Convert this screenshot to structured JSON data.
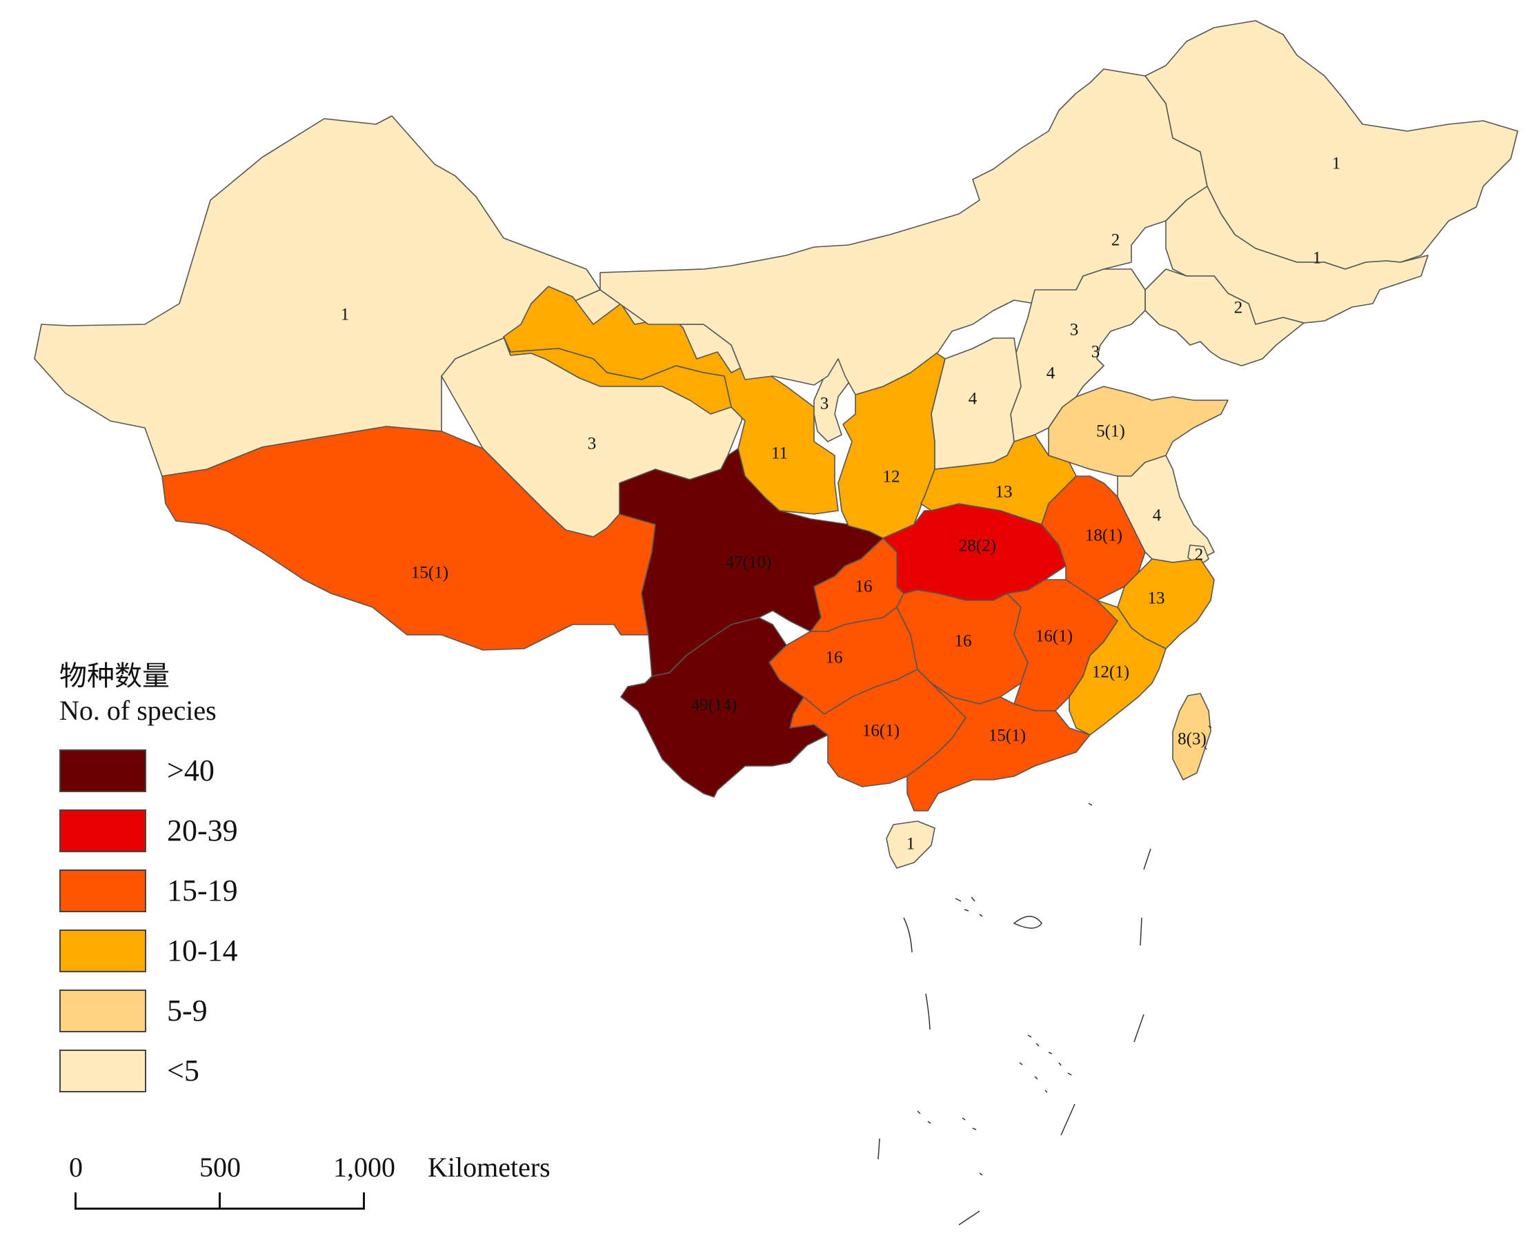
{
  "colors": {
    "class_gt40": "#6b0000",
    "class_20_39": "#e60000",
    "class_15_19": "#ff5500",
    "class_10_14": "#ffaa00",
    "class_5_9": "#ffd37f",
    "class_lt5": "#ffebbe"
  },
  "legend": {
    "title_cn": "物种数量",
    "title_en": "No. of species",
    "items": [
      {
        "label": ">40",
        "color": "#6b0000"
      },
      {
        "label": "20-39",
        "color": "#e60000"
      },
      {
        "label": "15-19",
        "color": "#ff5500"
      },
      {
        "label": "10-14",
        "color": "#ffaa00"
      },
      {
        "label": "5-9",
        "color": "#ffd37f"
      },
      {
        "label": "<5",
        "color": "#ffebbe"
      }
    ]
  },
  "scale_bar": {
    "ticks": [
      "0",
      "500",
      "1,000"
    ],
    "unit": "Kilometers"
  },
  "regions": [
    {
      "label": "1",
      "class": "class_lt5"
    },
    {
      "label": "3",
      "class": "class_lt5"
    },
    {
      "label": "15(1)",
      "class": "class_15_19"
    },
    {
      "label": "47(10)",
      "class": "class_gt40"
    },
    {
      "label": "49(14)",
      "class": "class_gt40"
    },
    {
      "label": "11",
      "class": "class_10_14"
    },
    {
      "label": "",
      "class": "class_10_14"
    },
    {
      "label": "3",
      "class": "class_lt5"
    },
    {
      "label": "12",
      "class": "class_10_14"
    },
    {
      "label": "2",
      "class": "class_lt5"
    },
    {
      "label": "1",
      "class": "class_lt5"
    },
    {
      "label": "1",
      "class": "class_lt5"
    },
    {
      "label": "2",
      "class": "class_lt5"
    },
    {
      "label": "3",
      "class": "class_lt5"
    },
    {
      "label": "3",
      "class": "class_lt5"
    },
    {
      "label": "4",
      "class": "class_lt5"
    },
    {
      "label": "4",
      "class": "class_lt5"
    },
    {
      "label": "5(1)",
      "class": "class_5_9"
    },
    {
      "label": "13",
      "class": "class_10_14"
    },
    {
      "label": "28(2)",
      "class": "class_20_39"
    },
    {
      "label": "18(1)",
      "class": "class_15_19"
    },
    {
      "label": "4",
      "class": "class_lt5"
    },
    {
      "label": "2",
      "class": "class_lt5"
    },
    {
      "label": "13",
      "class": "class_10_14"
    },
    {
      "label": "16",
      "class": "class_15_19"
    },
    {
      "label": "16",
      "class": "class_15_19"
    },
    {
      "label": "16",
      "class": "class_15_19"
    },
    {
      "label": "16(1)",
      "class": "class_15_19"
    },
    {
      "label": "12(1)",
      "class": "class_10_14"
    },
    {
      "label": "16(1)",
      "class": "class_15_19"
    },
    {
      "label": "15(1)",
      "class": "class_15_19"
    },
    {
      "label": "8(3)",
      "class": "class_5_9"
    },
    {
      "label": "1",
      "class": "class_lt5"
    }
  ]
}
